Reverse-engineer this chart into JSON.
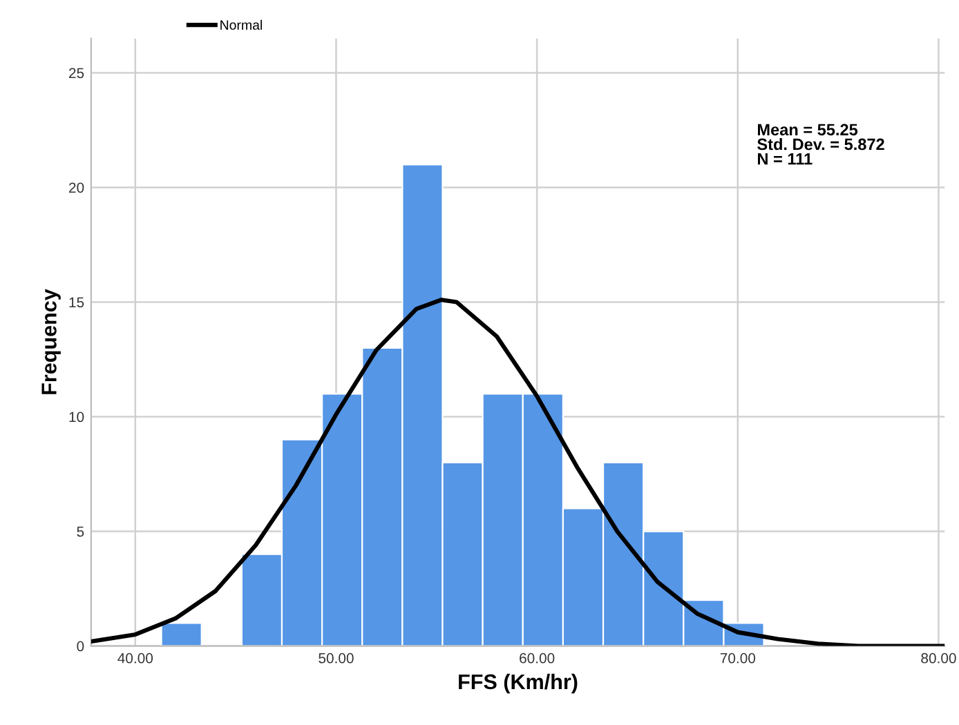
{
  "chart_data": {
    "type": "histogram",
    "xlabel": "FFS (Km/hr)",
    "ylabel": "Frequency",
    "xlim": [
      37.8,
      80.3
    ],
    "ylim": [
      0,
      26.5
    ],
    "xticks": [
      {
        "value": 40,
        "label": "40.00"
      },
      {
        "value": 50,
        "label": "50.00"
      },
      {
        "value": 60,
        "label": "60.00"
      },
      {
        "value": 70,
        "label": "70.00"
      },
      {
        "value": 80,
        "label": "80.00"
      }
    ],
    "yticks": [
      0,
      5,
      10,
      15,
      20,
      25
    ],
    "grid": true,
    "legend": "top",
    "annotations": [
      "Mean = 55.25\nStd. Dev. = 5.872\nN = 111"
    ],
    "series": [
      {
        "color": "#5596e6",
        "bins": [
          41.3,
          43.3,
          45.3,
          47.3,
          49.3,
          51.3,
          53.3,
          55.3,
          57.3,
          59.3,
          61.3,
          63.3,
          65.3,
          67.3,
          69.3,
          71.3
        ],
        "values": [
          1,
          0,
          4,
          9,
          11,
          13,
          21,
          8,
          11,
          11,
          6,
          8,
          5,
          2,
          1
        ]
      },
      {
        "type": "line",
        "name": "Normal",
        "color": "#000000",
        "x": [
          37.8,
          40,
          42,
          44,
          46,
          48,
          50,
          52,
          54,
          55.25,
          56,
          58,
          60,
          62,
          64,
          66,
          68,
          70,
          72,
          74,
          76,
          78,
          80.3
        ],
        "values": [
          0.2,
          0.5,
          1.2,
          2.4,
          4.4,
          7.0,
          10.1,
          12.9,
          14.7,
          15.1,
          15.0,
          13.5,
          10.9,
          7.8,
          5.0,
          2.8,
          1.4,
          0.6,
          0.3,
          0.1,
          0.0,
          0.0,
          0.0
        ]
      }
    ]
  }
}
